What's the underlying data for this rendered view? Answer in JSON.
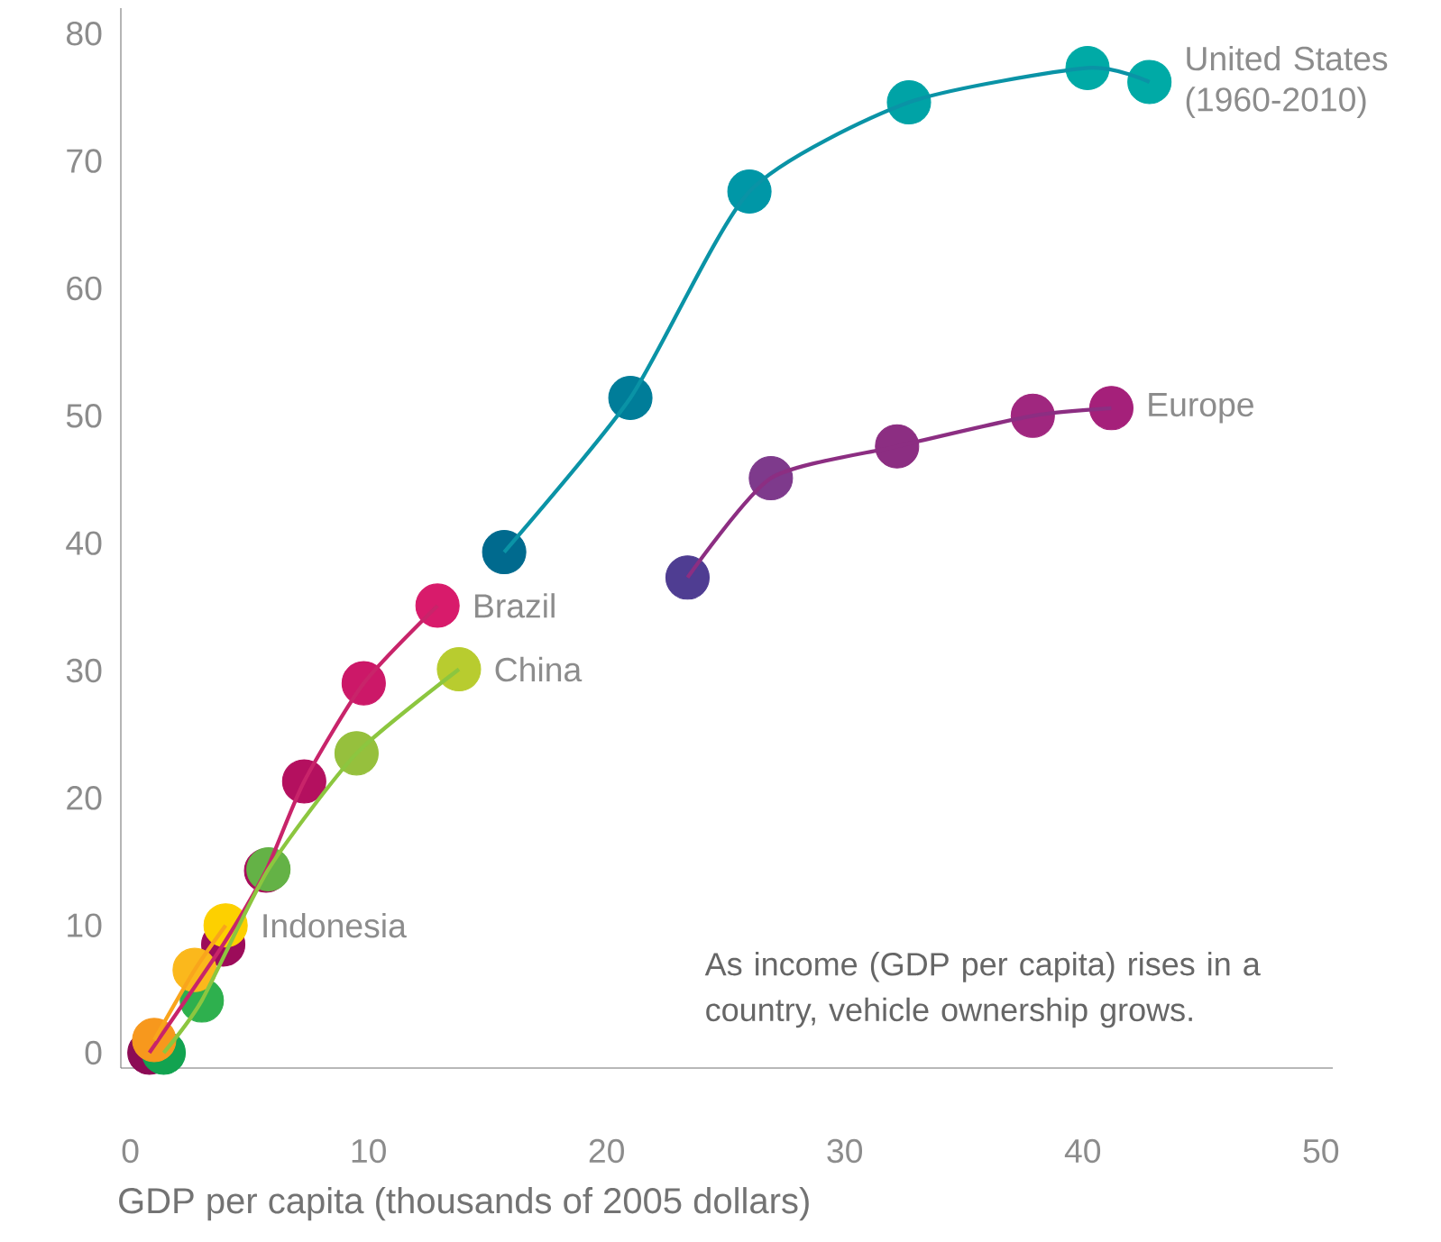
{
  "chart_data": {
    "type": "line",
    "xlabel": "GDP per capita (thousands of 2005 dollars)",
    "xlim": [
      -0.4,
      50.5
    ],
    "ylim": [
      -1.2,
      82
    ],
    "xticks": [
      0,
      10,
      20,
      30,
      40,
      50
    ],
    "yticks": [
      0,
      10,
      20,
      30,
      40,
      50,
      60,
      70,
      80
    ],
    "marker": "circle",
    "line_style": "solid",
    "annotations": [
      "As income (GDP per capita) rises in a country, vehicle ownership grows.",
      {
        "text": "United States (1960-2010)",
        "x": 42.8,
        "y": 76.2
      },
      {
        "text": "Europe",
        "x": 41.2,
        "y": 50.6
      },
      {
        "text": "Brazil",
        "x": 12.9,
        "y": 35.1
      },
      {
        "text": "China",
        "x": 13.8,
        "y": 30.1
      },
      {
        "text": "Indonesia",
        "x": 4.0,
        "y": 10.0
      }
    ],
    "series": [
      {
        "color": "#0a93a6",
        "x": [
          15.7,
          21.0,
          26.0,
          32.7,
          40.2,
          42.8
        ],
        "values": [
          39.3,
          51.4,
          67.6,
          74.6,
          77.3,
          76.2
        ],
        "colors": [
          "#006a8e",
          "#007d99",
          "#0097a7",
          "#00a3a6",
          "#00aaa6",
          "#00aaa6"
        ]
      },
      {
        "color": "#8c2e82",
        "x": [
          23.4,
          26.9,
          32.2,
          37.9,
          41.2
        ],
        "values": [
          37.3,
          45.1,
          47.6,
          50.0,
          50.6
        ],
        "colors": [
          "#4f3d92",
          "#7e3a8c",
          "#8c2e82",
          "#a0277f",
          "#a5207a"
        ]
      },
      {
        "color": "#c8246a",
        "x": [
          0.8,
          3.9,
          5.7,
          7.3,
          9.8,
          12.9
        ],
        "values": [
          0,
          8.5,
          14.3,
          21.3,
          29.0,
          35.1
        ],
        "colors": [
          "#8c0b55",
          "#9c0c5a",
          "#a80d5c",
          "#b4105f",
          "#cc1868",
          "#d81b6b"
        ]
      },
      {
        "color": "#8cc63f",
        "x": [
          1.4,
          3.0,
          5.8,
          9.5,
          13.8
        ],
        "values": [
          0,
          4.1,
          14.4,
          23.5,
          30.1
        ],
        "colors": [
          "#12a350",
          "#2eb04e",
          "#64b246",
          "#96c03d",
          "#b8cc2f"
        ]
      },
      {
        "color": "#f9a51c",
        "x": [
          1.0,
          2.7,
          4.0
        ],
        "values": [
          1.0,
          6.5,
          10.0
        ],
        "colors": [
          "#f7981d",
          "#fbb81c",
          "#fdd000"
        ]
      }
    ]
  }
}
